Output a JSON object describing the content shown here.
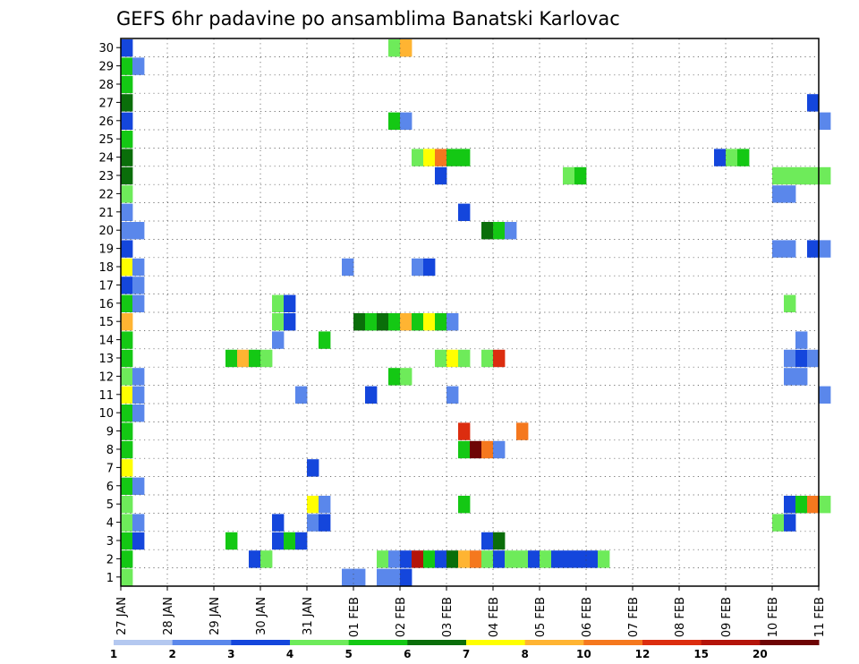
{
  "chart_data": {
    "type": "heatmap",
    "title": "GEFS 6hr padavine po ansamblima Banatski Karlovac",
    "xlabel": "",
    "ylabel": "",
    "x_tick_labels": [
      "27 JAN",
      "28 JAN",
      "29 JAN",
      "30 JAN",
      "31 JAN",
      "01 FEB",
      "02 FEB",
      "03 FEB",
      "04 FEB",
      "05 FEB",
      "06 FEB",
      "07 FEB",
      "08 FEB",
      "09 FEB",
      "10 FEB",
      "11 FEB"
    ],
    "y_tick_labels": [
      "1",
      "2",
      "3",
      "4",
      "5",
      "6",
      "7",
      "8",
      "9",
      "10",
      "11",
      "12",
      "13",
      "14",
      "15",
      "16",
      "17",
      "18",
      "19",
      "20",
      "21",
      "22",
      "23",
      "24",
      "25",
      "26",
      "27",
      "28",
      "29",
      "30"
    ],
    "x_range_steps": [
      0,
      60
    ],
    "y_range": [
      0,
      30
    ],
    "grid": true,
    "legend": {
      "placement": "bottom",
      "labels": [
        "1",
        "2",
        "3",
        "4",
        "5",
        "6",
        "7",
        "8",
        "10",
        "12",
        "15",
        "20"
      ],
      "colors": [
        "#b4c8f0",
        "#5a87eb",
        "#1446dc",
        "#6eeb5a",
        "#14c814",
        "#0a6e0a",
        "#ffff00",
        "#ffb432",
        "#f5781e",
        "#dc2d0f",
        "#b4140a",
        "#6e0505"
      ]
    },
    "series": [
      {
        "member": 30,
        "cells": [
          [
            0,
            2
          ],
          [
            23,
            3
          ],
          [
            24,
            7
          ]
        ]
      },
      {
        "member": 29,
        "cells": [
          [
            0,
            4
          ],
          [
            1,
            1
          ]
        ]
      },
      {
        "member": 28,
        "cells": [
          [
            0,
            4
          ]
        ]
      },
      {
        "member": 27,
        "cells": [
          [
            0,
            5
          ],
          [
            59,
            2
          ]
        ]
      },
      {
        "member": 26,
        "cells": [
          [
            0,
            2
          ],
          [
            23,
            4
          ],
          [
            24,
            1
          ],
          [
            60,
            1
          ]
        ]
      },
      {
        "member": 25,
        "cells": [
          [
            0,
            4
          ]
        ]
      },
      {
        "member": 24,
        "cells": [
          [
            0,
            5
          ],
          [
            25,
            3
          ],
          [
            26,
            6
          ],
          [
            27,
            8
          ],
          [
            28,
            4
          ],
          [
            29,
            4
          ],
          [
            51,
            2
          ],
          [
            52,
            3
          ],
          [
            53,
            4
          ]
        ]
      },
      {
        "member": 23,
        "cells": [
          [
            0,
            5
          ],
          [
            27,
            2
          ],
          [
            38,
            3
          ],
          [
            39,
            4
          ],
          [
            56,
            3
          ],
          [
            57,
            3
          ],
          [
            58,
            3
          ],
          [
            59,
            3
          ],
          [
            60,
            3
          ]
        ]
      },
      {
        "member": 22,
        "cells": [
          [
            0,
            3
          ],
          [
            56,
            1
          ],
          [
            57,
            1
          ]
        ]
      },
      {
        "member": 21,
        "cells": [
          [
            0,
            1
          ],
          [
            29,
            2
          ]
        ]
      },
      {
        "member": 20,
        "cells": [
          [
            0,
            1
          ],
          [
            1,
            1
          ],
          [
            31,
            5
          ],
          [
            32,
            4
          ],
          [
            33,
            1
          ]
        ]
      },
      {
        "member": 19,
        "cells": [
          [
            0,
            2
          ],
          [
            56,
            1
          ],
          [
            57,
            1
          ],
          [
            59,
            2
          ],
          [
            60,
            1
          ]
        ]
      },
      {
        "member": 18,
        "cells": [
          [
            0,
            6
          ],
          [
            1,
            1
          ],
          [
            19,
            1
          ],
          [
            25,
            1
          ],
          [
            26,
            2
          ]
        ]
      },
      {
        "member": 17,
        "cells": [
          [
            0,
            2
          ],
          [
            1,
            1
          ]
        ]
      },
      {
        "member": 16,
        "cells": [
          [
            0,
            4
          ],
          [
            1,
            1
          ],
          [
            13,
            3
          ],
          [
            14,
            2
          ],
          [
            57,
            3
          ]
        ]
      },
      {
        "member": 15,
        "cells": [
          [
            0,
            7
          ],
          [
            13,
            3
          ],
          [
            14,
            2
          ],
          [
            20,
            5
          ],
          [
            21,
            4
          ],
          [
            22,
            5
          ],
          [
            23,
            4
          ],
          [
            24,
            7
          ],
          [
            25,
            4
          ],
          [
            26,
            6
          ],
          [
            27,
            4
          ],
          [
            28,
            1
          ]
        ]
      },
      {
        "member": 14,
        "cells": [
          [
            0,
            4
          ],
          [
            13,
            1
          ],
          [
            17,
            4
          ],
          [
            58,
            1
          ]
        ]
      },
      {
        "member": 13,
        "cells": [
          [
            0,
            4
          ],
          [
            9,
            4
          ],
          [
            10,
            7
          ],
          [
            11,
            4
          ],
          [
            12,
            3
          ],
          [
            27,
            3
          ],
          [
            28,
            6
          ],
          [
            29,
            3
          ],
          [
            31,
            3
          ],
          [
            32,
            9
          ],
          [
            57,
            1
          ],
          [
            58,
            2
          ],
          [
            59,
            1
          ]
        ]
      },
      {
        "member": 12,
        "cells": [
          [
            0,
            3
          ],
          [
            1,
            1
          ],
          [
            23,
            4
          ],
          [
            24,
            3
          ],
          [
            57,
            1
          ],
          [
            58,
            1
          ]
        ]
      },
      {
        "member": 11,
        "cells": [
          [
            0,
            6
          ],
          [
            1,
            1
          ],
          [
            15,
            1
          ],
          [
            21,
            2
          ],
          [
            28,
            1
          ],
          [
            60,
            1
          ]
        ]
      },
      {
        "member": 10,
        "cells": [
          [
            0,
            4
          ],
          [
            1,
            1
          ]
        ]
      },
      {
        "member": 9,
        "cells": [
          [
            0,
            4
          ],
          [
            29,
            9
          ],
          [
            34,
            8
          ]
        ]
      },
      {
        "member": 8,
        "cells": [
          [
            0,
            4
          ],
          [
            29,
            4
          ],
          [
            30,
            11
          ],
          [
            31,
            8
          ],
          [
            32,
            1
          ]
        ]
      },
      {
        "member": 7,
        "cells": [
          [
            0,
            6
          ],
          [
            16,
            2
          ]
        ]
      },
      {
        "member": 6,
        "cells": [
          [
            0,
            4
          ],
          [
            1,
            1
          ]
        ]
      },
      {
        "member": 5,
        "cells": [
          [
            0,
            3
          ],
          [
            16,
            6
          ],
          [
            17,
            1
          ],
          [
            29,
            4
          ],
          [
            57,
            2
          ],
          [
            58,
            4
          ],
          [
            59,
            8
          ],
          [
            60,
            3
          ]
        ]
      },
      {
        "member": 4,
        "cells": [
          [
            0,
            3
          ],
          [
            1,
            1
          ],
          [
            13,
            2
          ],
          [
            16,
            1
          ],
          [
            17,
            2
          ],
          [
            56,
            3
          ],
          [
            57,
            2
          ]
        ]
      },
      {
        "member": 3,
        "cells": [
          [
            0,
            4
          ],
          [
            1,
            2
          ],
          [
            13,
            2
          ],
          [
            14,
            4
          ],
          [
            15,
            2
          ],
          [
            9,
            4
          ],
          [
            31,
            2
          ],
          [
            32,
            5
          ]
        ]
      },
      {
        "member": 2,
        "cells": [
          [
            0,
            4
          ],
          [
            11,
            2
          ],
          [
            12,
            3
          ],
          [
            22,
            3
          ],
          [
            23,
            1
          ],
          [
            24,
            2
          ],
          [
            25,
            10
          ],
          [
            26,
            4
          ],
          [
            27,
            2
          ],
          [
            28,
            5
          ],
          [
            29,
            7
          ],
          [
            30,
            8
          ],
          [
            31,
            3
          ],
          [
            32,
            2
          ],
          [
            33,
            3
          ],
          [
            34,
            3
          ],
          [
            35,
            2
          ],
          [
            36,
            3
          ],
          [
            37,
            2
          ],
          [
            38,
            2
          ],
          [
            39,
            2
          ],
          [
            40,
            2
          ],
          [
            41,
            3
          ]
        ]
      },
      {
        "member": 1,
        "cells": [
          [
            0,
            3
          ],
          [
            19,
            1
          ],
          [
            20,
            1
          ],
          [
            22,
            1
          ],
          [
            23,
            1
          ],
          [
            24,
            2
          ]
        ]
      }
    ]
  }
}
